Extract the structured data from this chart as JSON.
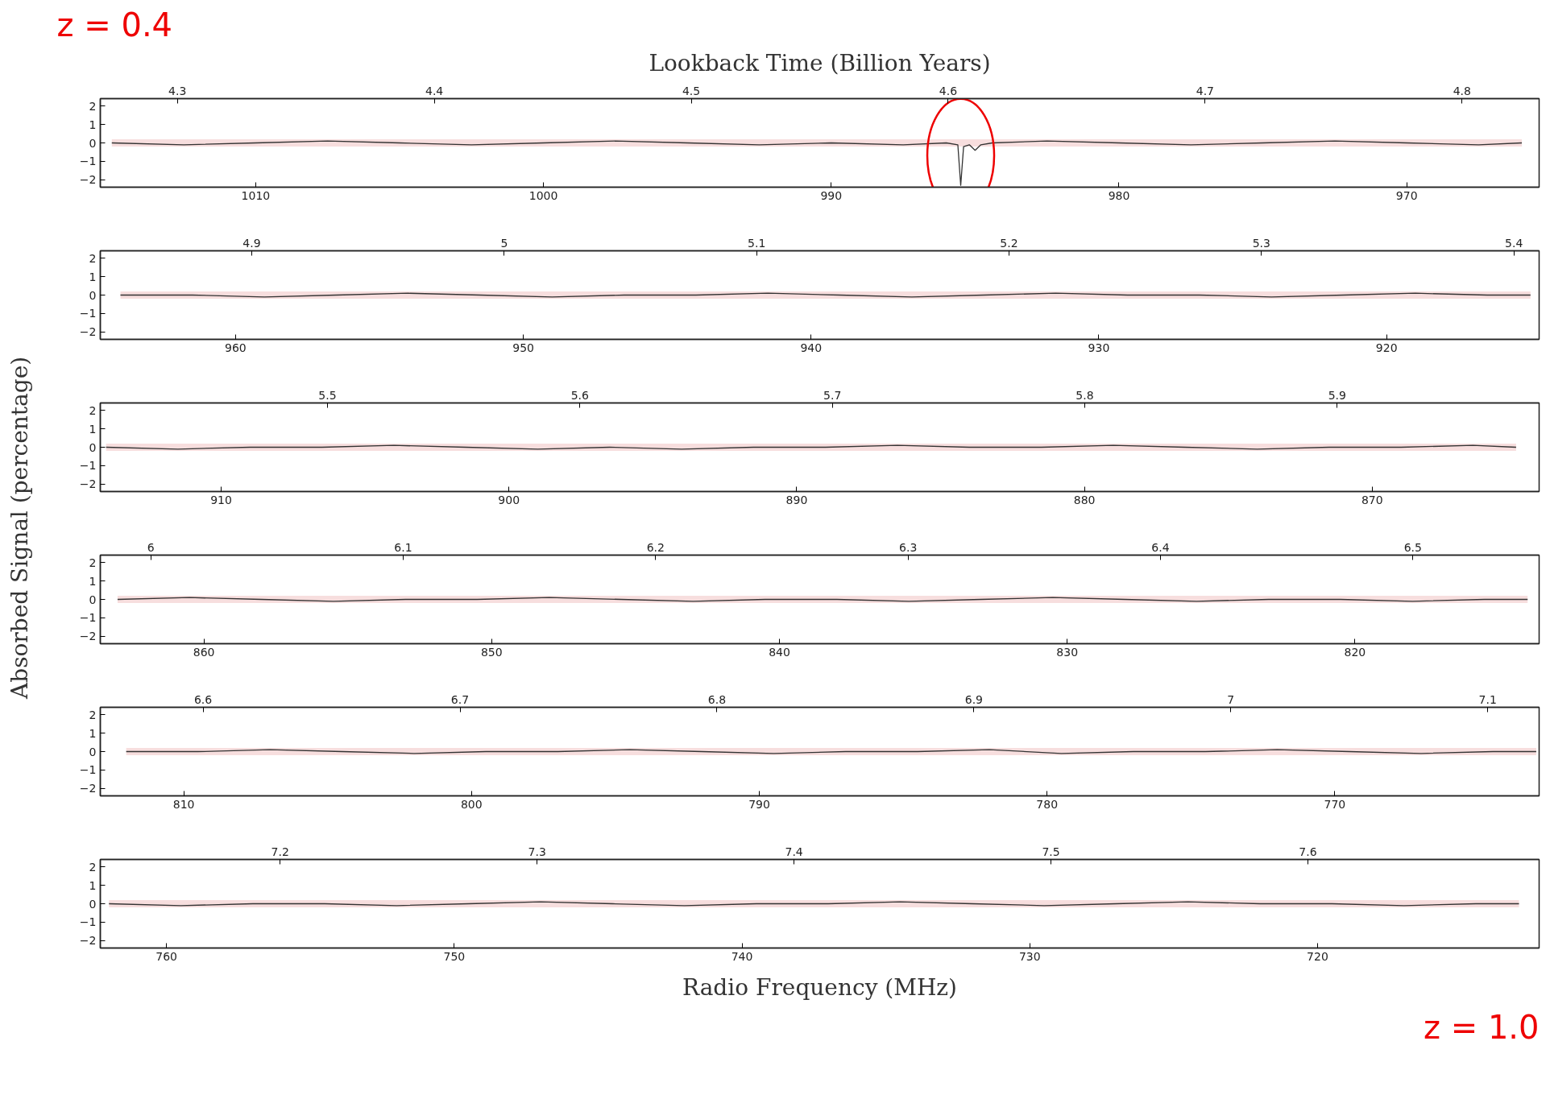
{
  "chart_data": [
    {
      "type": "line",
      "x2label": "Lookback Time (Billion Years)",
      "annotations": [
        "z = 0.4"
      ],
      "xlim": [
        1015.4,
        965.4
      ],
      "xticks": [
        1010,
        1000,
        990,
        980,
        970
      ],
      "x2lim": [
        4.27,
        4.83
      ],
      "x2ticks": [
        4.3,
        4.4,
        4.5,
        4.6,
        4.7,
        4.8
      ],
      "ylim": [
        -2.4,
        2.4
      ],
      "yticks": [
        2,
        1,
        0,
        -1,
        -2
      ],
      "marker": "none",
      "grid": false,
      "series": [
        {
          "color": "#333333",
          "x": [
            1015,
            1012.5,
            1010,
            1007.5,
            1005,
            1002.5,
            1000,
            997.5,
            995,
            992.5,
            990,
            987.5,
            986,
            985.6,
            985.5,
            985.4,
            985.2,
            985,
            984.8,
            984.4,
            982.5,
            980,
            977.5,
            975,
            972.5,
            970,
            967.5,
            966
          ],
          "values": [
            0,
            -0.1,
            0,
            0.1,
            0,
            -0.1,
            0,
            0.1,
            0,
            -0.1,
            0,
            -0.1,
            0,
            -0.1,
            -2.3,
            -0.2,
            -0.1,
            -0.4,
            -0.1,
            0,
            0.1,
            0,
            -0.1,
            0,
            0.1,
            0,
            -0.1,
            0
          ],
          "lower": [
            -0.2,
            -0.2,
            -0.2,
            -0.2,
            -0.2,
            -0.2,
            -0.2,
            -0.2,
            -0.2,
            -0.2,
            -0.2,
            -0.2,
            -0.2,
            -0.2,
            -0.2,
            -0.2,
            -0.2,
            -0.2,
            -0.2,
            -0.2,
            -0.2,
            -0.2,
            -0.2,
            -0.2,
            -0.2,
            -0.2,
            -0.2,
            -0.2
          ],
          "upper": [
            0.2,
            0.2,
            0.2,
            0.2,
            0.2,
            0.2,
            0.2,
            0.2,
            0.2,
            0.2,
            0.2,
            0.2,
            0.2,
            0.2,
            0.2,
            0.2,
            0.2,
            0.2,
            0.2,
            0.2,
            0.2,
            0.2,
            0.2,
            0.2,
            0.2,
            0.2,
            0.2,
            0.2
          ]
        }
      ]
    },
    {
      "type": "line",
      "xlim": [
        964.7,
        914.7
      ],
      "xticks": [
        960,
        950,
        940,
        930,
        920
      ],
      "x2lim": [
        4.84,
        5.41
      ],
      "x2ticks": [
        4.9,
        5,
        5.1,
        5.2,
        5.3,
        5.4
      ],
      "ylim": [
        -2.4,
        2.4
      ],
      "yticks": [
        2,
        1,
        0,
        -1,
        -2
      ],
      "marker": "none",
      "grid": false,
      "series": [
        {
          "color": "#333333",
          "x": [
            964,
            961.5,
            959,
            956.5,
            954,
            951.5,
            949,
            946.5,
            944,
            941.5,
            939,
            936.5,
            934,
            931.5,
            929,
            926.5,
            924,
            921.5,
            919,
            916.5,
            915
          ],
          "values": [
            0,
            0,
            -0.1,
            0,
            0.1,
            0,
            -0.1,
            0,
            0,
            0.1,
            0,
            -0.1,
            0,
            0.1,
            0,
            0,
            -0.1,
            0,
            0.1,
            0,
            0
          ],
          "lower": [
            -0.2,
            -0.2,
            -0.2,
            -0.2,
            -0.2,
            -0.2,
            -0.2,
            -0.2,
            -0.2,
            -0.2,
            -0.2,
            -0.2,
            -0.2,
            -0.2,
            -0.2,
            -0.2,
            -0.2,
            -0.2,
            -0.2,
            -0.2,
            -0.2
          ],
          "upper": [
            0.2,
            0.2,
            0.2,
            0.2,
            0.2,
            0.2,
            0.2,
            0.2,
            0.2,
            0.2,
            0.2,
            0.2,
            0.2,
            0.2,
            0.2,
            0.2,
            0.2,
            0.2,
            0.2,
            0.2,
            0.2
          ]
        }
      ]
    },
    {
      "type": "line",
      "xlim": [
        914.2,
        864.2
      ],
      "xticks": [
        910,
        900,
        890,
        880,
        870
      ],
      "x2lim": [
        5.41,
        5.98
      ],
      "x2ticks": [
        5.5,
        5.6,
        5.7,
        5.8,
        5.9
      ],
      "ylim": [
        -2.4,
        2.4
      ],
      "yticks": [
        2,
        1,
        0,
        -1,
        -2
      ],
      "marker": "none",
      "grid": false,
      "series": [
        {
          "color": "#333333",
          "x": [
            914,
            911.5,
            909,
            906.5,
            904,
            901.5,
            899,
            896.5,
            894,
            891.5,
            889,
            886.5,
            884,
            881.5,
            879,
            876.5,
            874,
            871.5,
            869,
            866.5,
            865
          ],
          "values": [
            0,
            -0.1,
            0,
            0,
            0.1,
            0,
            -0.1,
            0,
            -0.1,
            0,
            0,
            0.1,
            0,
            0,
            0.1,
            0,
            -0.1,
            0,
            0,
            0.1,
            0
          ],
          "lower": [
            -0.2,
            -0.2,
            -0.2,
            -0.2,
            -0.2,
            -0.2,
            -0.2,
            -0.2,
            -0.2,
            -0.2,
            -0.2,
            -0.2,
            -0.2,
            -0.2,
            -0.2,
            -0.2,
            -0.2,
            -0.2,
            -0.2,
            -0.2,
            -0.2
          ],
          "upper": [
            0.2,
            0.2,
            0.2,
            0.2,
            0.2,
            0.2,
            0.2,
            0.2,
            0.2,
            0.2,
            0.2,
            0.2,
            0.2,
            0.2,
            0.2,
            0.2,
            0.2,
            0.2,
            0.2,
            0.2,
            0.2
          ]
        }
      ]
    },
    {
      "type": "line",
      "ylabel": "Absorbed Signal (percentage)",
      "xlim": [
        863.6,
        813.6
      ],
      "xticks": [
        860,
        850,
        840,
        830,
        820
      ],
      "x2lim": [
        5.98,
        6.55
      ],
      "x2ticks": [
        6,
        6.1,
        6.2,
        6.3,
        6.4,
        6.5
      ],
      "ylim": [
        -2.4,
        2.4
      ],
      "yticks": [
        2,
        1,
        0,
        -1,
        -2
      ],
      "marker": "none",
      "grid": false,
      "series": [
        {
          "color": "#333333",
          "x": [
            863,
            860.5,
            858,
            855.5,
            853,
            850.5,
            848,
            845.5,
            843,
            840.5,
            838,
            835.5,
            833,
            830.5,
            828,
            825.5,
            823,
            820.5,
            818,
            815.5,
            814
          ],
          "values": [
            0,
            0.1,
            0,
            -0.1,
            0,
            0,
            0.1,
            0,
            -0.1,
            0,
            0,
            -0.1,
            0,
            0.1,
            0,
            -0.1,
            0,
            0,
            -0.1,
            0,
            0
          ],
          "lower": [
            -0.2,
            -0.2,
            -0.2,
            -0.2,
            -0.2,
            -0.2,
            -0.2,
            -0.2,
            -0.2,
            -0.2,
            -0.2,
            -0.2,
            -0.2,
            -0.2,
            -0.2,
            -0.2,
            -0.2,
            -0.2,
            -0.2,
            -0.2,
            -0.2
          ],
          "upper": [
            0.2,
            0.2,
            0.2,
            0.2,
            0.2,
            0.2,
            0.2,
            0.2,
            0.2,
            0.2,
            0.2,
            0.2,
            0.2,
            0.2,
            0.2,
            0.2,
            0.2,
            0.2,
            0.2,
            0.2,
            0.2
          ]
        }
      ]
    },
    {
      "type": "line",
      "xlim": [
        812.9,
        762.9
      ],
      "xticks": [
        810,
        800,
        790,
        780,
        770
      ],
      "x2lim": [
        6.56,
        7.12
      ],
      "x2ticks": [
        6.6,
        6.7,
        6.8,
        6.9,
        7,
        7.1
      ],
      "ylim": [
        -2.4,
        2.4
      ],
      "yticks": [
        2,
        1,
        0,
        -1,
        -2
      ],
      "marker": "none",
      "grid": false,
      "series": [
        {
          "color": "#333333",
          "x": [
            812,
            809.5,
            807,
            804.5,
            802,
            799.5,
            797,
            794.5,
            792,
            789.5,
            787,
            784.5,
            782,
            779.5,
            777,
            774.5,
            772,
            769.5,
            767,
            764.5,
            763
          ],
          "values": [
            0,
            0,
            0.1,
            0,
            -0.1,
            0,
            0,
            0.1,
            0,
            -0.1,
            0,
            0,
            0.1,
            -0.1,
            0,
            0,
            0.1,
            0,
            -0.1,
            0,
            0
          ],
          "lower": [
            -0.2,
            -0.2,
            -0.2,
            -0.2,
            -0.2,
            -0.2,
            -0.2,
            -0.2,
            -0.2,
            -0.2,
            -0.2,
            -0.2,
            -0.2,
            -0.2,
            -0.2,
            -0.2,
            -0.2,
            -0.2,
            -0.2,
            -0.2,
            -0.2
          ],
          "upper": [
            0.2,
            0.2,
            0.2,
            0.2,
            0.2,
            0.2,
            0.2,
            0.2,
            0.2,
            0.2,
            0.2,
            0.2,
            0.2,
            0.2,
            0.2,
            0.2,
            0.2,
            0.2,
            0.2,
            0.2,
            0.2
          ]
        }
      ]
    },
    {
      "type": "line",
      "xlabel": "Radio Frequency (MHz)",
      "annotations": [
        "z = 1.0"
      ],
      "xlim": [
        762.3,
        712.3
      ],
      "xticks": [
        760,
        750,
        740,
        730,
        720
      ],
      "x2lim": [
        7.13,
        7.69
      ],
      "x2ticks": [
        7.2,
        7.3,
        7.4,
        7.5,
        7.6
      ],
      "ylim": [
        -2.4,
        2.4
      ],
      "yticks": [
        2,
        1,
        0,
        -1,
        -2
      ],
      "marker": "none",
      "grid": false,
      "series": [
        {
          "color": "#333333",
          "x": [
            762,
            759.5,
            757,
            754.5,
            752,
            749.5,
            747,
            744.5,
            742,
            739.5,
            737,
            734.5,
            732,
            729.5,
            727,
            724.5,
            722,
            719.5,
            717,
            714.5,
            713
          ],
          "values": [
            0,
            -0.1,
            0,
            0,
            -0.1,
            0,
            0.1,
            0,
            -0.1,
            0,
            0,
            0.1,
            0,
            -0.1,
            0,
            0.1,
            0,
            0,
            -0.1,
            0,
            0
          ],
          "lower": [
            -0.2,
            -0.2,
            -0.2,
            -0.2,
            -0.2,
            -0.2,
            -0.2,
            -0.2,
            -0.2,
            -0.2,
            -0.2,
            -0.2,
            -0.2,
            -0.2,
            -0.2,
            -0.2,
            -0.2,
            -0.2,
            -0.2,
            -0.2,
            -0.2
          ],
          "upper": [
            0.2,
            0.2,
            0.2,
            0.2,
            0.2,
            0.2,
            0.2,
            0.2,
            0.2,
            0.2,
            0.2,
            0.2,
            0.2,
            0.2,
            0.2,
            0.2,
            0.2,
            0.2,
            0.2,
            0.2,
            0.2
          ]
        }
      ]
    }
  ]
}
